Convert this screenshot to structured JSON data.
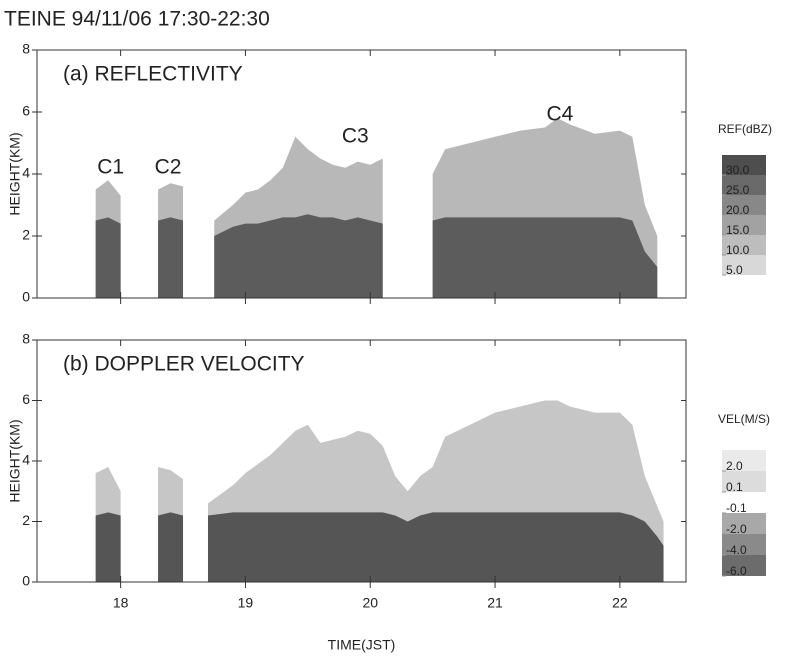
{
  "title": "TEINE 94/11/06 17:30-22:30",
  "chart_data": [
    {
      "type": "area",
      "panel_label": "(a) REFLECTIVITY",
      "ylabel": "HEIGHT(KM)",
      "xlim": [
        17.33,
        22.53
      ],
      "ylim": [
        0,
        8
      ],
      "xticks": [
        18,
        19,
        20,
        21,
        22
      ],
      "yticks": [
        0,
        2,
        4,
        6,
        8
      ],
      "xtick_labels": false,
      "x": [
        17.8,
        17.9,
        18.0,
        18.1,
        18.3,
        18.4,
        18.5,
        18.6,
        18.75,
        18.9,
        19.0,
        19.1,
        19.2,
        19.3,
        19.4,
        19.5,
        19.6,
        19.7,
        19.8,
        19.9,
        20.0,
        20.1,
        20.2,
        20.5,
        20.6,
        20.8,
        21.0,
        21.2,
        21.4,
        21.5,
        21.6,
        21.8,
        22.0,
        22.1,
        22.2,
        22.3,
        22.4
      ],
      "series": [
        {
          "color": "#b8b8b8",
          "values": [
            3.5,
            3.8,
            3.3,
            null,
            3.5,
            3.7,
            3.6,
            null,
            2.5,
            3.0,
            3.4,
            3.5,
            3.8,
            4.2,
            5.2,
            4.8,
            4.5,
            4.3,
            4.2,
            4.4,
            4.3,
            4.5,
            null,
            4.0,
            4.8,
            5.0,
            5.2,
            5.4,
            5.5,
            5.8,
            5.6,
            5.3,
            5.4,
            5.2,
            3.0,
            2.0,
            null
          ]
        },
        {
          "color": "#5c5c5c",
          "values": [
            2.5,
            2.6,
            2.4,
            null,
            2.5,
            2.6,
            2.5,
            null,
            2.0,
            2.3,
            2.4,
            2.4,
            2.5,
            2.6,
            2.6,
            2.7,
            2.6,
            2.6,
            2.5,
            2.6,
            2.5,
            2.4,
            null,
            2.5,
            2.6,
            2.6,
            2.6,
            2.6,
            2.6,
            2.6,
            2.6,
            2.6,
            2.6,
            2.5,
            1.5,
            1.0,
            null
          ]
        }
      ],
      "annotations": [
        {
          "text": "C1",
          "x": 17.92,
          "y": 4.2
        },
        {
          "text": "C2",
          "x": 18.38,
          "y": 4.2
        },
        {
          "text": "C3",
          "x": 19.88,
          "y": 5.2
        },
        {
          "text": "C4",
          "x": 21.52,
          "y": 5.9
        }
      ],
      "colorbar": {
        "title": "REF(dBZ)",
        "ticks": [
          {
            "value": 30,
            "label": "30.0"
          },
          {
            "value": 25,
            "label": "25.0"
          },
          {
            "value": 20,
            "label": "20.0"
          },
          {
            "value": 15,
            "label": "15.0"
          },
          {
            "value": 10,
            "label": "10.0"
          },
          {
            "value": 5,
            "label": "5.0"
          }
        ],
        "colors": [
          "#4e4e4e",
          "#6a6a6a",
          "#888888",
          "#a2a2a2",
          "#bdbdbd",
          "#d8d8d8"
        ]
      }
    },
    {
      "type": "area",
      "panel_label": "(b) DOPPLER VELOCITY",
      "ylabel": "HEIGHT(KM)",
      "xlabel": "TIME(JST)",
      "xlim": [
        17.33,
        22.53
      ],
      "ylim": [
        0,
        8
      ],
      "xticks": [
        18,
        19,
        20,
        21,
        22
      ],
      "yticks": [
        0,
        2,
        4,
        6,
        8
      ],
      "xtick_labels": true,
      "x": [
        17.8,
        17.9,
        18.0,
        18.1,
        18.3,
        18.4,
        18.5,
        18.6,
        18.7,
        18.9,
        19.0,
        19.2,
        19.4,
        19.5,
        19.6,
        19.8,
        19.9,
        20.0,
        20.1,
        20.2,
        20.3,
        20.4,
        20.5,
        20.6,
        20.8,
        21.0,
        21.2,
        21.4,
        21.5,
        21.6,
        21.8,
        22.0,
        22.1,
        22.2,
        22.3,
        22.35
      ],
      "series": [
        {
          "color": "#c6c6c6",
          "values": [
            3.6,
            3.8,
            3.0,
            null,
            3.8,
            3.7,
            3.4,
            null,
            2.6,
            3.2,
            3.6,
            4.2,
            5.0,
            5.2,
            4.6,
            4.8,
            5.0,
            4.9,
            4.5,
            3.5,
            3.0,
            3.5,
            3.8,
            4.8,
            5.2,
            5.6,
            5.8,
            6.0,
            6.0,
            5.8,
            5.6,
            5.6,
            5.2,
            3.5,
            2.5,
            2.0
          ]
        },
        {
          "color": "#555555",
          "values": [
            2.2,
            2.3,
            2.2,
            null,
            2.2,
            2.3,
            2.2,
            null,
            2.2,
            2.3,
            2.3,
            2.3,
            2.3,
            2.3,
            2.3,
            2.3,
            2.3,
            2.3,
            2.3,
            2.2,
            2.0,
            2.2,
            2.3,
            2.3,
            2.3,
            2.3,
            2.3,
            2.3,
            2.3,
            2.3,
            2.3,
            2.3,
            2.2,
            2.0,
            1.5,
            1.2
          ]
        }
      ],
      "colorbar": {
        "title": "VEL(M/S)",
        "ticks": [
          {
            "value": 2,
            "label": "2.0"
          },
          0.1,
          -0.1,
          {
            "value": -2,
            "label": "-2.0"
          },
          {
            "value": -4,
            "label": "-4.0"
          },
          {
            "value": -6,
            "label": "-6.0"
          }
        ],
        "colors": [
          "#eaeaea",
          "#dcdcdc",
          "#ffffff",
          "#a8a8a8",
          "#8a8a8a",
          "#6c6c6c"
        ]
      }
    }
  ]
}
